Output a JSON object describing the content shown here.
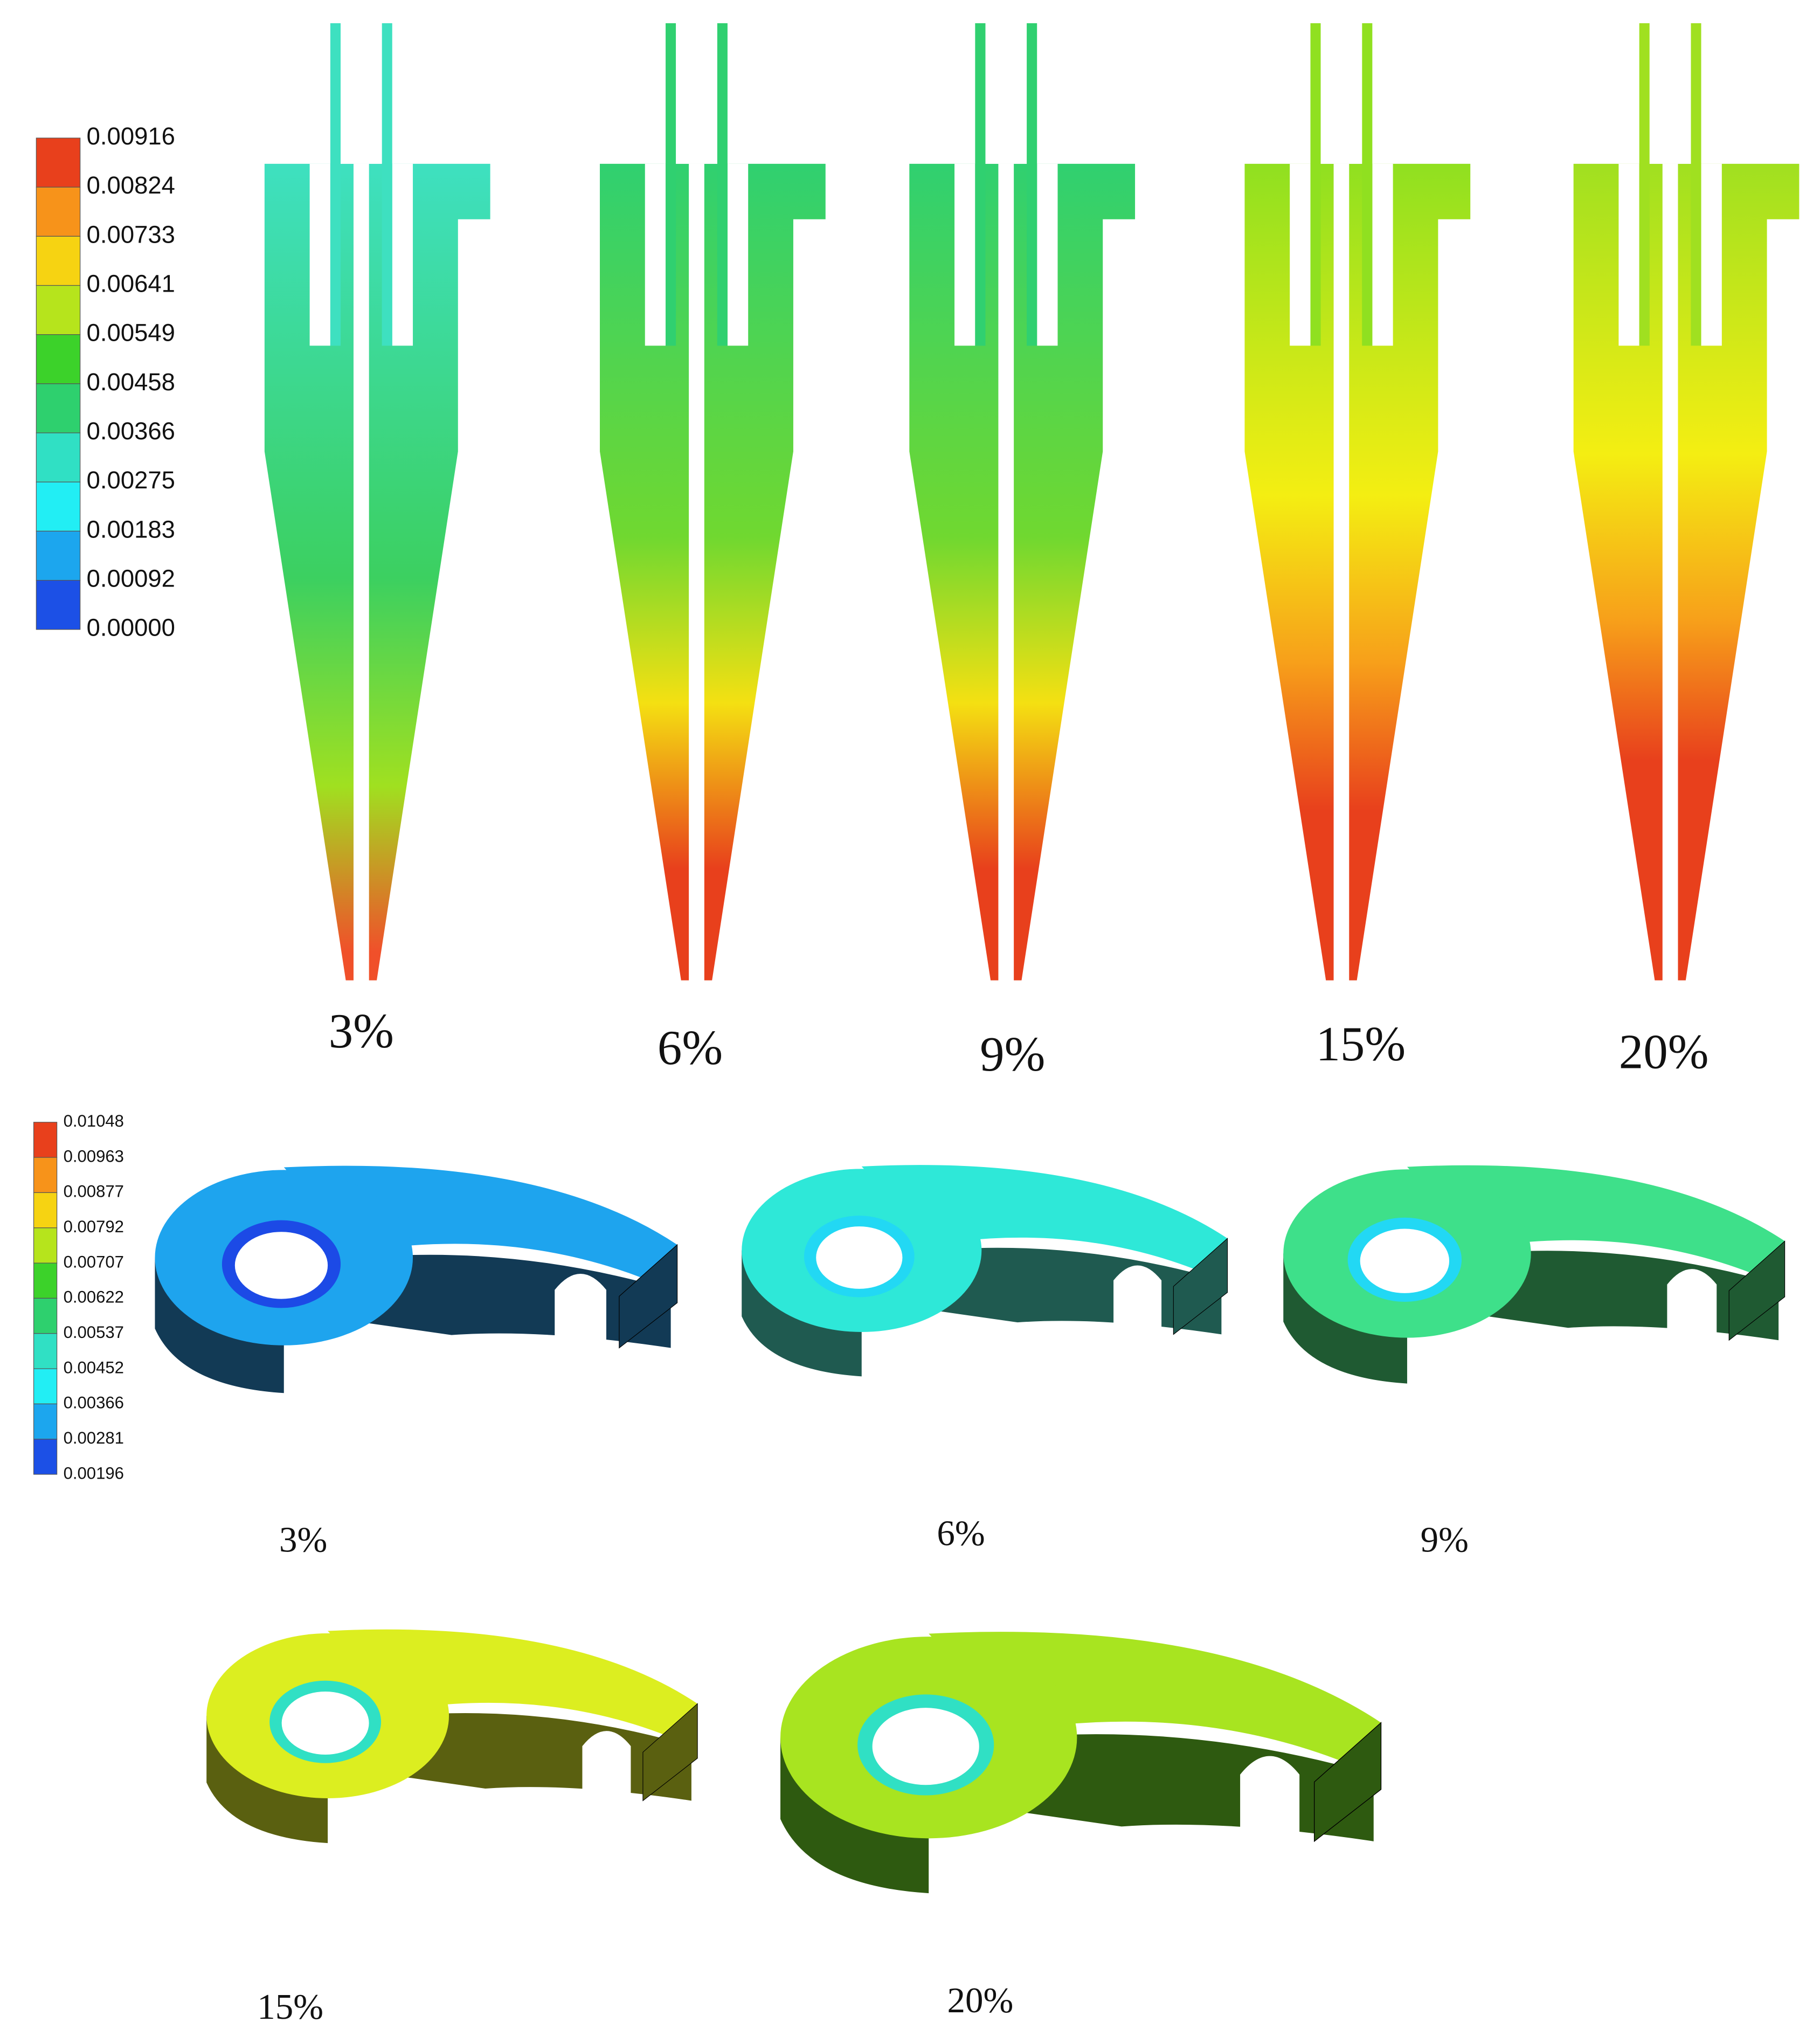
{
  "top": {
    "legend": {
      "labels": [
        "0.00916",
        "0.00824",
        "0.00733",
        "0.00641",
        "0.00549",
        "0.00458",
        "0.00366",
        "0.00275",
        "0.00183",
        "0.00092",
        "0.00000"
      ]
    },
    "panels": [
      {
        "label": "3%"
      },
      {
        "label": "6%"
      },
      {
        "label": "9%"
      },
      {
        "label": "15%"
      },
      {
        "label": "20%"
      }
    ]
  },
  "bottom": {
    "legend": {
      "labels": [
        "0.01048",
        "0.00963",
        "0.00877",
        "0.00792",
        "0.00707",
        "0.00622",
        "0.00537",
        "0.00452",
        "0.00366",
        "0.00281",
        "0.00196"
      ]
    },
    "panels": [
      {
        "label": "3%"
      },
      {
        "label": "6%"
      },
      {
        "label": "9%"
      },
      {
        "label": "15%"
      },
      {
        "label": "20%"
      }
    ]
  }
}
